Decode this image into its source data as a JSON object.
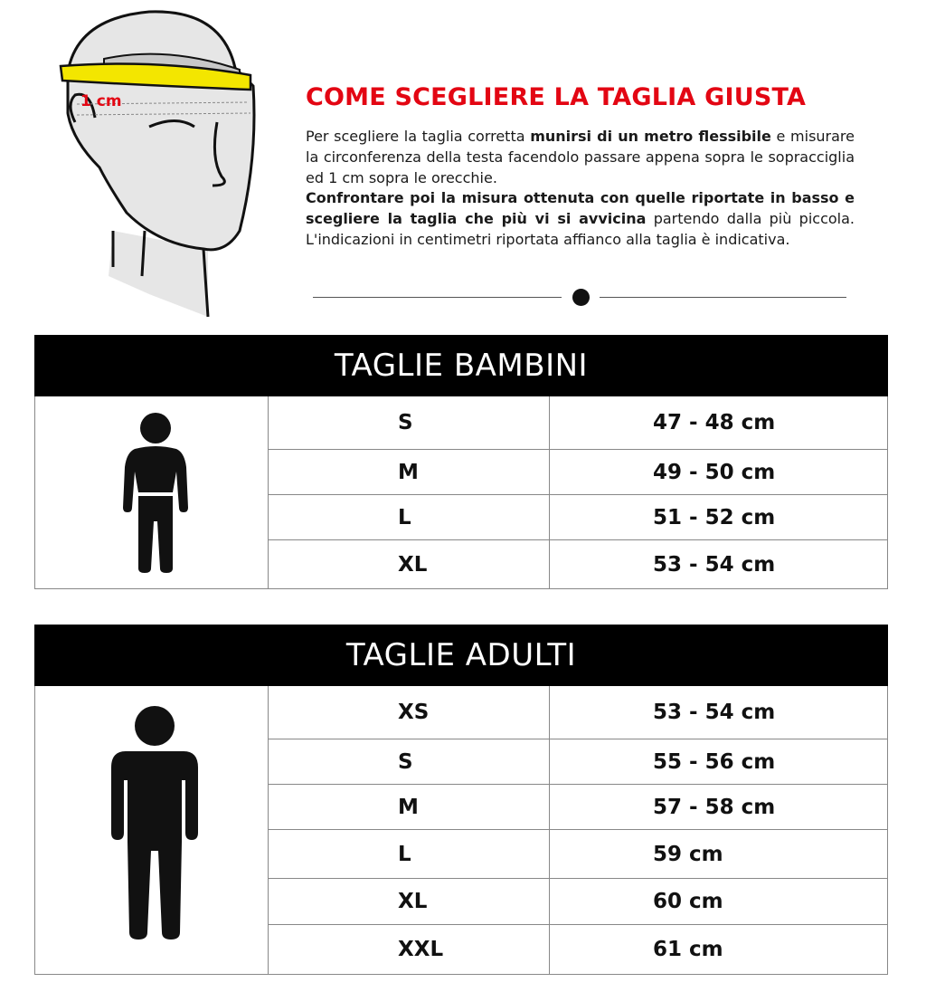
{
  "illustration": {
    "tape_label": "1 cm",
    "tape_color": "#f3e600",
    "label_color": "#e30613"
  },
  "title": "COME SCEGLIERE LA TAGLIA GIUSTA",
  "paragraph": {
    "p1": "Per scegliere la taglia corretta ",
    "b1": "munirsi di un metro flessibile",
    "p2": " e misurare la circonferenza della testa facendolo passare appena sopra le sopracciglia ed 1 cm sopra le orecchie.",
    "b2": "Confrontare poi la misura ottenuta con quelle riportate in basso e scegliere la taglia che più vi si avvicina",
    "p3": " partendo dalla più piccola. L'indicazioni in centimetri riportata affianco alla taglia è indicativa."
  },
  "kids": {
    "title": "TAGLIE BAMBINI",
    "rows": [
      {
        "size": "S",
        "measure": "47 - 48 cm"
      },
      {
        "size": "M",
        "measure": "49 - 50 cm"
      },
      {
        "size": "L",
        "measure": "51 - 52 cm"
      },
      {
        "size": "XL",
        "measure": "53 - 54 cm"
      }
    ]
  },
  "adults": {
    "title": "TAGLIE ADULTI",
    "rows": [
      {
        "size": "XS",
        "measure": "53 - 54 cm"
      },
      {
        "size": "S",
        "measure": "55 - 56 cm"
      },
      {
        "size": "M",
        "measure": "57 - 58 cm"
      },
      {
        "size": "L",
        "measure": "59 cm"
      },
      {
        "size": "XL",
        "measure": "60 cm"
      },
      {
        "size": "XXL",
        "measure": "61 cm"
      }
    ]
  }
}
